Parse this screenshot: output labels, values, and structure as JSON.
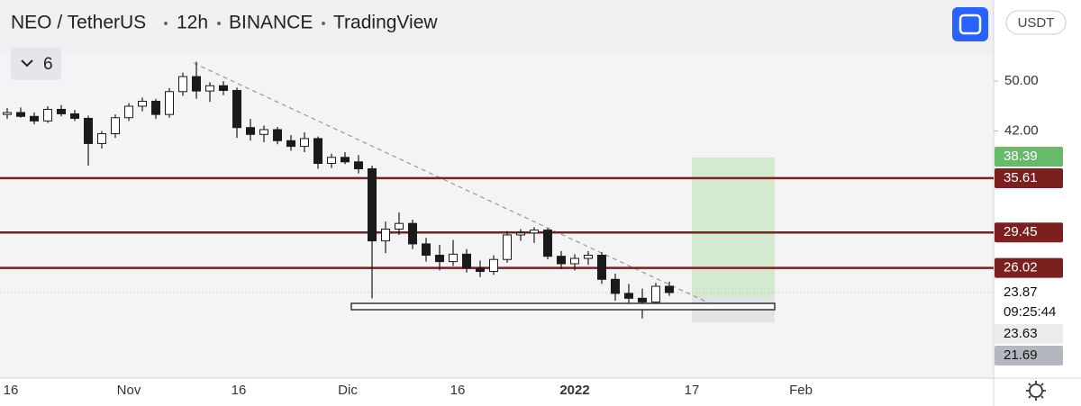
{
  "header": {
    "symbol": "NEO / TetherUS",
    "interval": "12h",
    "exchange": "BINANCE",
    "source": "TradingView",
    "indicator_count": "6",
    "currency": "USDT"
  },
  "chart_data": {
    "type": "candlestick",
    "candles": [
      [
        44.5,
        45.5,
        43.8,
        44.8
      ],
      [
        44.8,
        45.6,
        44,
        44.2
      ],
      [
        44.2,
        44.8,
        43,
        43.5
      ],
      [
        43.5,
        45.8,
        43.2,
        45.3
      ],
      [
        45.3,
        46,
        44.2,
        44.6
      ],
      [
        44.6,
        45.2,
        43.5,
        43.9
      ],
      [
        43.9,
        44.3,
        37.2,
        40.2
      ],
      [
        40.2,
        42,
        39.5,
        41.6
      ],
      [
        41.6,
        44.5,
        41,
        44
      ],
      [
        44,
        46.3,
        43.5,
        45.8
      ],
      [
        45.8,
        47.2,
        45,
        46.6
      ],
      [
        46.6,
        47,
        43.8,
        44.5
      ],
      [
        44.5,
        48.8,
        44,
        48.2
      ],
      [
        48.2,
        51.5,
        47.5,
        50.8
      ],
      [
        50.8,
        53.5,
        47,
        48.3
      ],
      [
        48.3,
        49.8,
        46.5,
        49.2
      ],
      [
        49.2,
        50,
        47.6,
        48.4
      ],
      [
        48.4,
        48.9,
        41,
        42.5
      ],
      [
        42.5,
        43.8,
        40.6,
        41.5
      ],
      [
        41.5,
        42.8,
        40.4,
        42.2
      ],
      [
        42.2,
        42.6,
        40.1,
        40.6
      ],
      [
        40.6,
        41.4,
        39.2,
        39.8
      ],
      [
        39.8,
        41.8,
        39,
        40.9
      ],
      [
        40.9,
        41.2,
        36.8,
        37.5
      ],
      [
        37.5,
        38.8,
        36.9,
        38.3
      ],
      [
        38.3,
        39,
        37.4,
        37.7
      ],
      [
        37.7,
        38.6,
        36.2,
        36.8
      ],
      [
        36.8,
        37.2,
        23.4,
        28.6
      ],
      [
        28.6,
        30.6,
        27.4,
        29.8
      ],
      [
        29.8,
        31.6,
        29.2,
        30.4
      ],
      [
        30.4,
        30.8,
        27.8,
        28.3
      ],
      [
        28.3,
        28.9,
        26.6,
        27.2
      ],
      [
        27.2,
        28.2,
        25.8,
        26.6
      ],
      [
        26.6,
        28.7,
        26.2,
        27.3
      ],
      [
        27.3,
        27.8,
        25.6,
        26
      ],
      [
        26,
        26.7,
        25.2,
        25.7
      ],
      [
        25.7,
        27.2,
        25.4,
        26.8
      ],
      [
        26.8,
        29.6,
        26.5,
        29.2
      ],
      [
        29.2,
        29.8,
        28.6,
        29.4
      ],
      [
        29.4,
        30,
        28.4,
        29.7
      ],
      [
        29.7,
        29.9,
        26.8,
        27.1
      ],
      [
        27.1,
        27.6,
        25.9,
        26.4
      ],
      [
        26.4,
        27.3,
        25.8,
        26.9
      ],
      [
        26.9,
        27.6,
        26.3,
        27.2
      ],
      [
        27.2,
        27.5,
        24.6,
        25
      ],
      [
        25,
        25.5,
        23.2,
        23.8
      ],
      [
        23.8,
        24.6,
        22.8,
        23.4
      ],
      [
        23.4,
        24.2,
        21.8,
        23.1
      ],
      [
        23.1,
        24.7,
        22.9,
        24.4
      ],
      [
        24.4,
        24.8,
        23.6,
        23.87
      ]
    ],
    "log_scale": true,
    "ylim": [
      17.7,
      66.4
    ],
    "yticks": [
      {
        "value": 50,
        "label": "50.00"
      },
      {
        "value": 42,
        "label": "42.00"
      }
    ],
    "xticks": [
      "16",
      "Nov",
      "16",
      "Dic",
      "16",
      "2022",
      "17",
      "Feb"
    ],
    "levels": [
      35.61,
      29.45,
      26.02
    ],
    "level_color": "#7b1f1f",
    "up_color": "#ffffff",
    "down_color": "#1a1a1a",
    "price_labels": [
      {
        "value": 38.39,
        "color": "#66bb6a"
      },
      {
        "value": 35.61,
        "color": "#7b1f1f"
      },
      {
        "value": 29.45,
        "color": "#7b1f1f"
      },
      {
        "value": 26.02,
        "color": "#7b1f1f"
      },
      {
        "value": 23.87,
        "color": "#ffffff",
        "countdown": "09:25:44"
      },
      {
        "value": 23.63,
        "color": "#ececec"
      },
      {
        "value": 21.69,
        "color": "#b4b7be"
      }
    ]
  }
}
